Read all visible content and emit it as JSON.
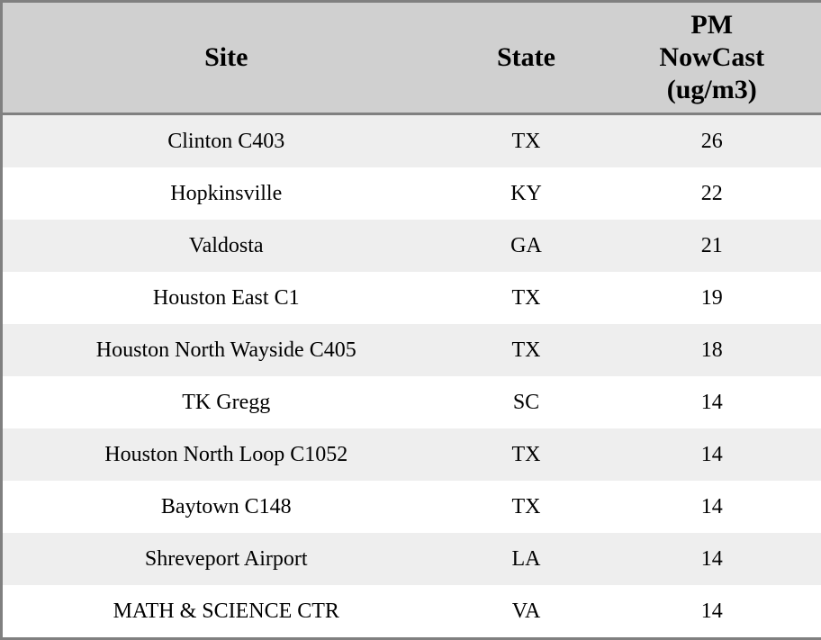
{
  "chart_data": {
    "type": "table",
    "columns": [
      {
        "key": "site",
        "label": "Site"
      },
      {
        "key": "state",
        "label": "State"
      },
      {
        "key": "pm_nowcast",
        "label": "PM\nNowCast\n(ug/m3)"
      }
    ],
    "rows": [
      {
        "site": "Clinton C403",
        "state": "TX",
        "pm_nowcast": 26
      },
      {
        "site": "Hopkinsville",
        "state": "KY",
        "pm_nowcast": 22
      },
      {
        "site": "Valdosta",
        "state": "GA",
        "pm_nowcast": 21
      },
      {
        "site": "Houston East C1",
        "state": "TX",
        "pm_nowcast": 19
      },
      {
        "site": "Houston North Wayside C405",
        "state": "TX",
        "pm_nowcast": 18
      },
      {
        "site": "TK Gregg",
        "state": "SC",
        "pm_nowcast": 14
      },
      {
        "site": "Houston North Loop C1052",
        "state": "TX",
        "pm_nowcast": 14
      },
      {
        "site": "Baytown C148",
        "state": "TX",
        "pm_nowcast": 14
      },
      {
        "site": "Shreveport Airport",
        "state": "LA",
        "pm_nowcast": 14
      },
      {
        "site": "MATH & SCIENCE CTR",
        "state": "VA",
        "pm_nowcast": 14
      }
    ]
  },
  "colors": {
    "header_bg": "#d0d0d0",
    "row_stripe_bg": "#eeeeee",
    "row_bg": "#ffffff",
    "border": "#808080",
    "text": "#000000"
  }
}
